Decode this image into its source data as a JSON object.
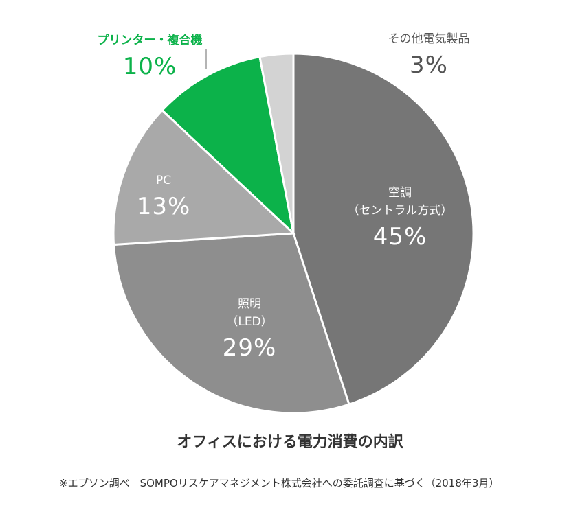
{
  "chart_data": {
    "type": "pie",
    "title": "オフィスにおける電力消費の内訳",
    "slices": [
      {
        "label": "空調",
        "sublabel": "（セントラル方式）",
        "value": 45,
        "value_label": "45%",
        "color": "#767676",
        "text_color": "#ffffff"
      },
      {
        "label": "照明",
        "sublabel": "（LED）",
        "value": 29,
        "value_label": "29%",
        "color": "#8e8e8e",
        "text_color": "#ffffff"
      },
      {
        "label": "PC",
        "sublabel": "",
        "value": 13,
        "value_label": "13%",
        "color": "#a9a9a9",
        "text_color": "#ffffff"
      },
      {
        "label": "プリンター・複合機",
        "sublabel": "",
        "value": 10,
        "value_label": "10%",
        "color": "#0cb24a",
        "text_color": "#0cb24a"
      },
      {
        "label": "その他電気製品",
        "sublabel": "",
        "value": 3,
        "value_label": "3%",
        "color": "#d3d3d3",
        "text_color": "#555555"
      }
    ]
  },
  "footnote": "※エプソン調べ　SOMPOリスケアマネジメント株式会社への委託調査に基づく（2018年3月）"
}
